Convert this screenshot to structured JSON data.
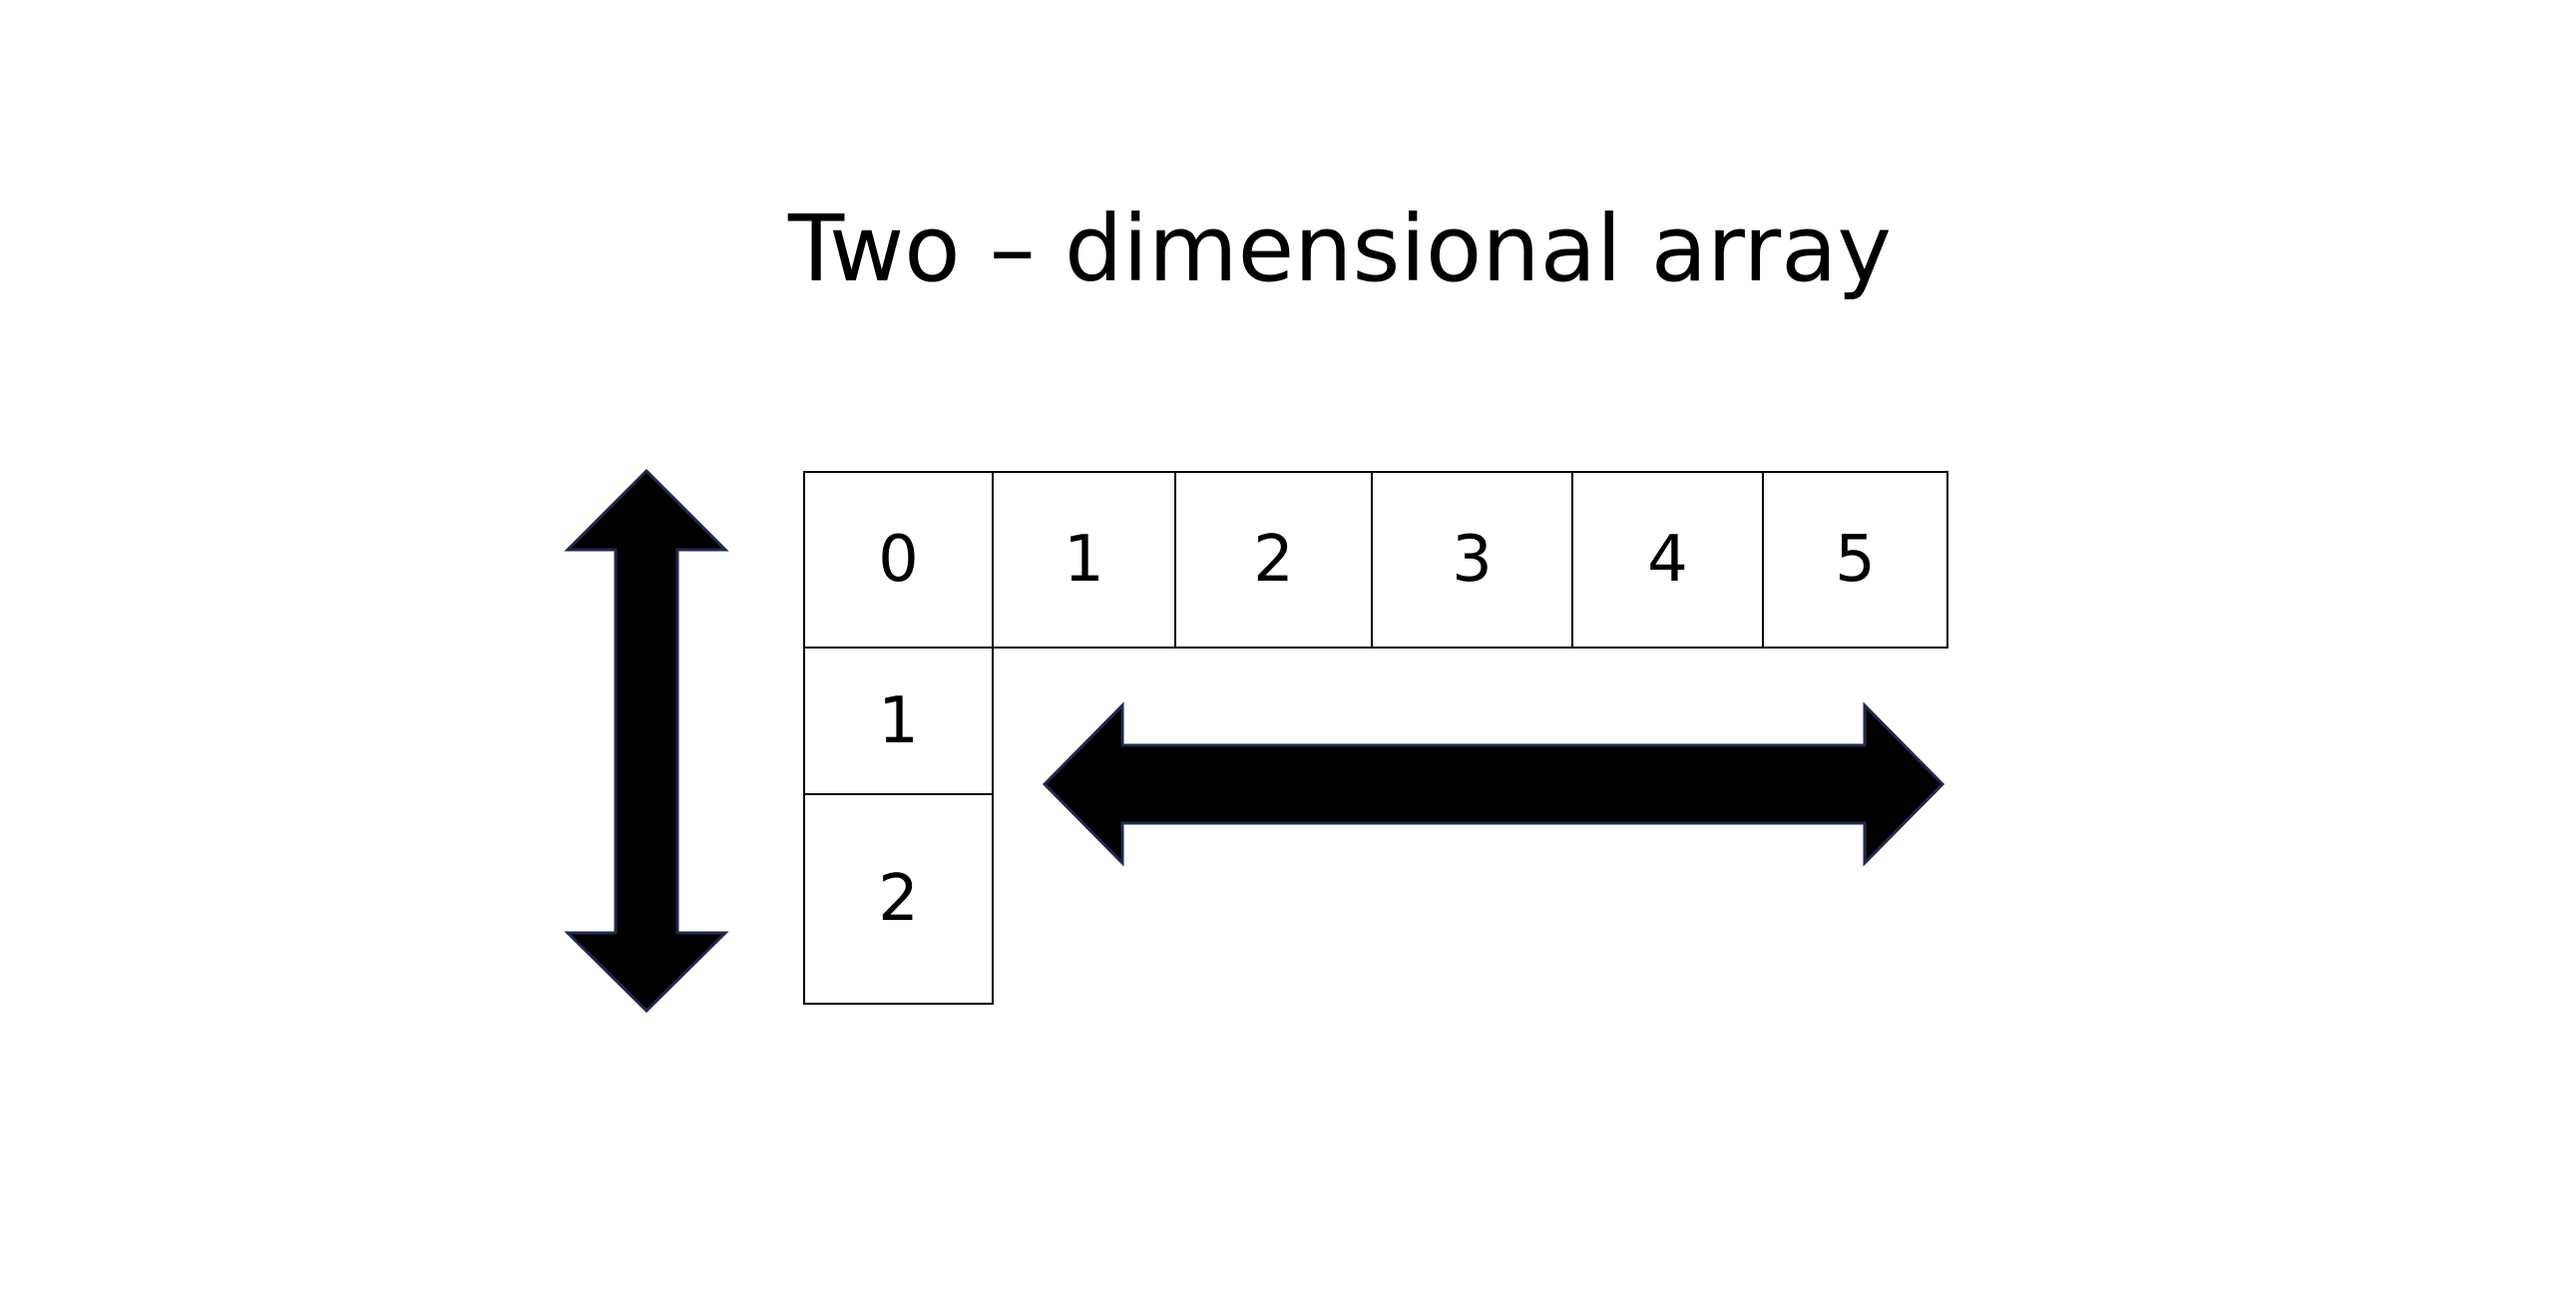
{
  "title": "Two – dimensional array",
  "top_row": [
    "0",
    "1",
    "2",
    "3",
    "4",
    "5"
  ],
  "left_column": [
    "1",
    "2"
  ],
  "arrows": {
    "vertical": "double-vertical-arrow-icon",
    "horizontal": "double-horizontal-arrow-icon"
  },
  "colors": {
    "background": "#ffffff",
    "ink": "#000000",
    "arrow_outline": "#1f2a4a"
  }
}
